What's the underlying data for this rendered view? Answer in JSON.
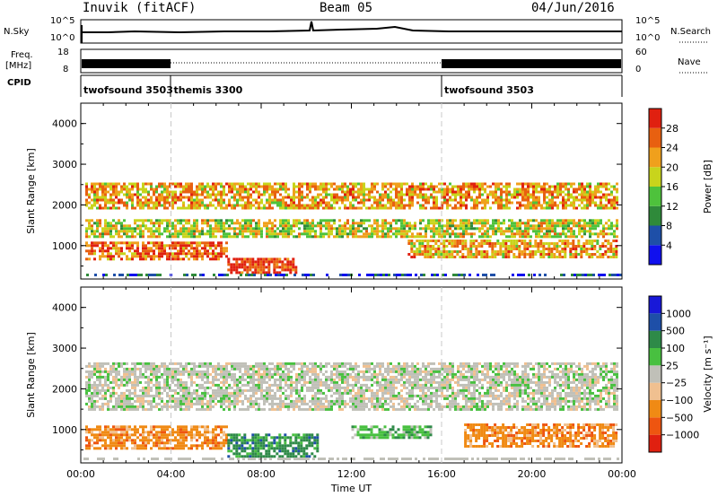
{
  "header": {
    "station": "Inuvik (fitACF)",
    "beam": "Beam 05",
    "date": "04/Jun/2016"
  },
  "strip_labels": {
    "nsky": "N.Sky",
    "freq_line1": "Freq.",
    "freq_line2": "[MHz]",
    "cpid": "CPID",
    "nsearch": "N.Search",
    "nave": "Nave",
    "nsky_ticks": [
      "10^5",
      "10^0"
    ],
    "nsearch_ticks": [
      "10^5",
      "10^0"
    ],
    "freq_ticks": [
      "18",
      "8"
    ],
    "nave_ticks": [
      "60",
      "0"
    ]
  },
  "cpid_segments": [
    {
      "label": "twofsound 3503",
      "start": 0
    },
    {
      "label": "themis 3300",
      "start": 4
    },
    {
      "label": "twofsound 3503",
      "start": 16
    }
  ],
  "colors": {
    "power": [
      "#1010ee",
      "#1e4fa8",
      "#2f8a3a",
      "#4ec23c",
      "#c8d41c",
      "#f0a01c",
      "#e86010",
      "#e02010"
    ],
    "velocity": [
      "#e02010",
      "#ee5510",
      "#f08a14",
      "#f0c090",
      "#c0c0b8",
      "#48c040",
      "#2e8a48",
      "#1e4fa8",
      "#1818d8"
    ],
    "grey": "#bebeb8"
  },
  "chart_data": [
    {
      "type": "heatmap",
      "name": "power-panel",
      "ylabel": "Slant Range [km]",
      "xlim": [
        0,
        24
      ],
      "ylim": [
        180,
        4500
      ],
      "yticks": [
        "1000",
        "2000",
        "3000",
        "4000"
      ],
      "colorbar_label": "Power [dB]",
      "colorbar_ticks": [
        "4",
        "8",
        "12",
        "16",
        "20",
        "24",
        "28"
      ],
      "bands": [
        {
          "t0": 0.2,
          "t1": 23.8,
          "r0": 1950,
          "r1": 2550,
          "level": 5
        },
        {
          "t0": 0.2,
          "t1": 23.8,
          "r0": 1200,
          "r1": 1650,
          "level": 4
        },
        {
          "t0": 0.2,
          "t1": 6.5,
          "r0": 700,
          "r1": 1100,
          "level": 6
        },
        {
          "t0": 6.5,
          "t1": 9.5,
          "r0": 350,
          "r1": 700,
          "level": 7
        },
        {
          "t0": 14.5,
          "t1": 23.8,
          "r0": 700,
          "r1": 1150,
          "level": 5
        }
      ]
    },
    {
      "type": "heatmap",
      "name": "velocity-panel",
      "ylabel": "Slant Range [km]",
      "xlabel": "Time UT",
      "xlim": [
        0,
        24
      ],
      "ylim": [
        180,
        4500
      ],
      "xticks": [
        "00:00",
        "04:00",
        "08:00",
        "12:00",
        "16:00",
        "20:00",
        "00:00"
      ],
      "yticks": [
        "1000",
        "2000",
        "3000",
        "4000"
      ],
      "colorbar_label": "Velocity [m s⁻¹]",
      "colorbar_ticks": [
        "1000",
        "500",
        "100",
        "25",
        "−25",
        "−100",
        "−500",
        "−1000"
      ],
      "bands": [
        {
          "t0": 0.2,
          "t1": 23.8,
          "r0": 1500,
          "r1": 2650,
          "level": 4
        },
        {
          "t0": 0.2,
          "t1": 6.5,
          "r0": 550,
          "r1": 1100,
          "level": 2
        },
        {
          "t0": 6.5,
          "t1": 10.5,
          "r0": 350,
          "r1": 900,
          "level": 6
        },
        {
          "t0": 12.0,
          "t1": 15.5,
          "r0": 800,
          "r1": 1100,
          "level": 5
        },
        {
          "t0": 17.0,
          "t1": 23.8,
          "r0": 600,
          "r1": 1150,
          "level": 2
        }
      ]
    }
  ]
}
